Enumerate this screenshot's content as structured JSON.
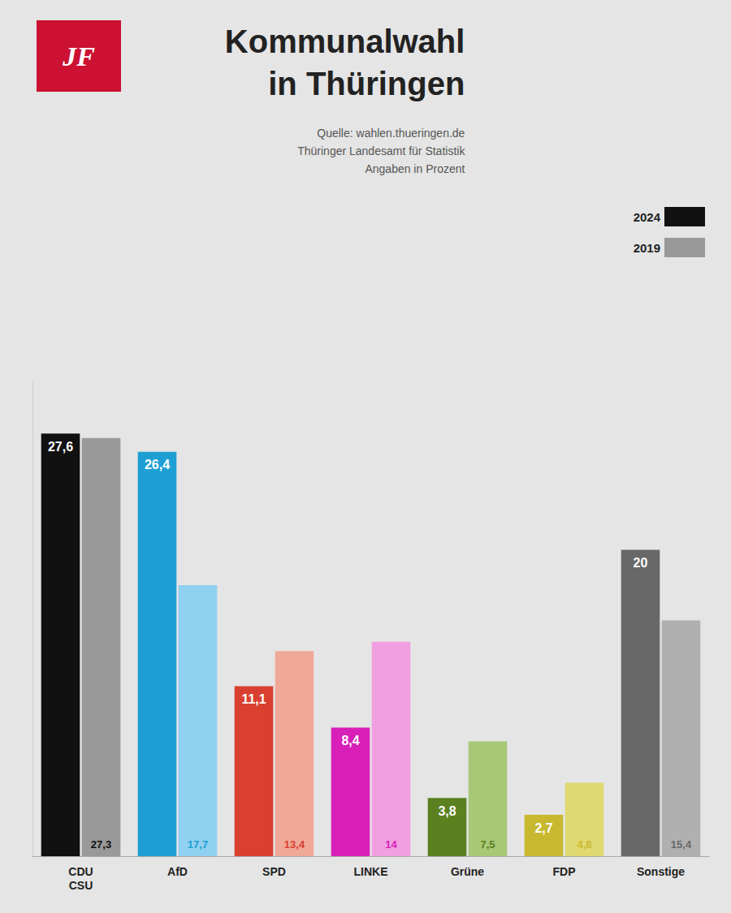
{
  "chart_data": {
    "type": "bar",
    "title": "Kommunalwahl\nin Thüringen",
    "subtitle": "Quelle: wahlen.thueringen.de\nThüringer Landesamt für Statistik\nAngaben in Prozent",
    "annotations": [
      "JF"
    ],
    "categories": [
      "CDU\nCSU",
      "AfD",
      "SPD",
      "LINKE",
      "Grüne",
      "FDP",
      "Sonstige"
    ],
    "series": [
      {
        "name": "2024",
        "color": "#111111",
        "colors": [
          "#111111",
          "#1e9fd4",
          "#d94030",
          "#d820b8",
          "#5a8020",
          "#c8b830",
          "#686868"
        ],
        "values": [
          27.6,
          26.4,
          11.1,
          8.4,
          3.8,
          2.7,
          20.0
        ],
        "value_labels": [
          "27,6",
          "26,4",
          "11,1",
          "8,4",
          "3,8",
          "2,7",
          "20"
        ]
      },
      {
        "name": "2019",
        "color": "#999999",
        "colors": [
          "#999999",
          "#90d0f0",
          "#f0a898",
          "#f0a0e0",
          "#a8c878",
          "#e0d870",
          "#b0b0b0"
        ],
        "values": [
          27.3,
          17.7,
          13.4,
          14.0,
          7.5,
          4.8,
          15.4
        ],
        "value_labels": [
          "27,3",
          "17,7",
          "13,4",
          "14",
          "7,5",
          "4,8",
          "15,4"
        ]
      }
    ],
    "ylim": [
      0,
      31
    ],
    "yticks": [],
    "grid": false,
    "legend": "upper right",
    "data_labels": true,
    "tick_labels": "x"
  }
}
